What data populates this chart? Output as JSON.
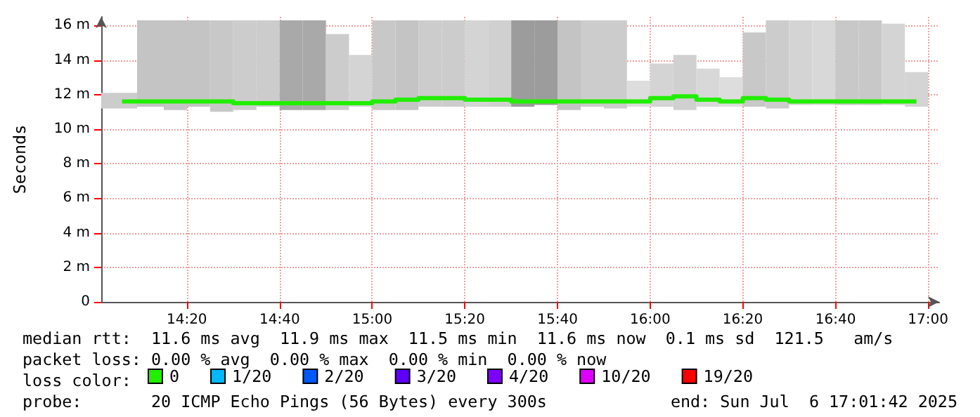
{
  "chart_data": {
    "type": "bar",
    "ylabel": "Seconds",
    "x": [
      14.1,
      14.208,
      14.292,
      14.375,
      14.458,
      14.542,
      14.625,
      14.708,
      14.792,
      14.875,
      14.958,
      15.042,
      15.125,
      15.208,
      15.292,
      15.375,
      15.458,
      15.542,
      15.625,
      15.708,
      15.792,
      15.875,
      15.958,
      16.042,
      16.125,
      16.208,
      16.292,
      16.375,
      16.458,
      16.542,
      16.625,
      16.708,
      16.792,
      16.875,
      16.958
    ],
    "series": [
      {
        "base": [
          11.2,
          11.3,
          11.1,
          11.3,
          11.0,
          11.1,
          11.3,
          11.1,
          11.1,
          11.1,
          11.3,
          11.1,
          11.1,
          11.3,
          11.3,
          11.3,
          11.3,
          11.3,
          11.4,
          11.1,
          11.3,
          11.2,
          11.3,
          11.3,
          11.1,
          11.3,
          11.3,
          11.3,
          11.2,
          11.4,
          11.4,
          11.4,
          11.4,
          11.4,
          11.3
        ],
        "values": [
          0.9,
          5.0,
          5.2,
          5.0,
          5.3,
          5.2,
          5.0,
          5.2,
          5.2,
          4.4,
          3.0,
          5.2,
          5.2,
          5.0,
          5.0,
          5.0,
          5.0,
          5.0,
          4.9,
          5.2,
          5.0,
          5.1,
          1.5,
          2.5,
          3.2,
          2.2,
          1.7,
          4.3,
          5.1,
          4.9,
          4.9,
          4.9,
          4.9,
          4.7,
          2.0
        ],
        "colors": [
          "#cccccc",
          "#c4c4c4",
          "#c4c4c4",
          "#c4c4c4",
          "#c8c8c8",
          "#cccccc",
          "#cccccc",
          "#a9a9a9",
          "#a9a9a9",
          "#cccccc",
          "#d4d4d4",
          "#c8c8c8",
          "#c4c4c4",
          "#cccccc",
          "#cccccc",
          "#d4d4d4",
          "#d0d0d0",
          "#9c9c9c",
          "#9c9c9c",
          "#c4c4c4",
          "#cccccc",
          "#cccccc",
          "#dddddd",
          "#d4d4d4",
          "#d0d0d0",
          "#d8d8d8",
          "#dddddd",
          "#c8c8c8",
          "#cccccc",
          "#d4d4d4",
          "#d8d8d8",
          "#c8c8c8",
          "#c8c8c8",
          "#d4d4d4",
          "#d4d4d4"
        ]
      },
      {
        "type": "step",
        "name": "0",
        "color": "#22ee00",
        "values": [
          11.6,
          11.6,
          11.6,
          11.6,
          11.6,
          11.5,
          11.5,
          11.5,
          11.5,
          11.5,
          11.5,
          11.6,
          11.7,
          11.8,
          11.8,
          11.7,
          11.7,
          11.6,
          11.6,
          11.6,
          11.6,
          11.6,
          11.6,
          11.8,
          11.9,
          11.7,
          11.6,
          11.8,
          11.7,
          11.6,
          11.6,
          11.6,
          11.6,
          11.6,
          11.6
        ]
      },
      {
        "type": "step",
        "name": "1/20",
        "color": "#00b8ff",
        "values": [
          null,
          null,
          null,
          null,
          null,
          null,
          null,
          null,
          null,
          null,
          null,
          null,
          null,
          null,
          null,
          null,
          null,
          null,
          null,
          null,
          null,
          null,
          null,
          null,
          null,
          null,
          null,
          null,
          null,
          null,
          null,
          null,
          null,
          null,
          null
        ]
      },
      {
        "type": "step",
        "name": "2/20",
        "color": "#0059ff",
        "values": [
          null,
          null,
          null,
          null,
          null,
          null,
          null,
          null,
          null,
          null,
          null,
          null,
          null,
          null,
          null,
          null,
          null,
          null,
          null,
          null,
          null,
          null,
          null,
          null,
          null,
          null,
          null,
          null,
          null,
          null,
          null,
          null,
          null,
          null,
          null
        ]
      },
      {
        "type": "step",
        "name": "3/20",
        "color": "#5e00ff",
        "values": [
          null,
          null,
          null,
          null,
          null,
          null,
          null,
          null,
          null,
          null,
          null,
          null,
          null,
          null,
          null,
          null,
          null,
          null,
          null,
          null,
          null,
          null,
          null,
          null,
          null,
          null,
          null,
          null,
          null,
          null,
          null,
          null,
          null,
          null,
          null
        ]
      },
      {
        "type": "step",
        "name": "4/20",
        "color": "#7e00ff",
        "values": [
          null,
          null,
          null,
          null,
          null,
          null,
          null,
          null,
          null,
          null,
          null,
          null,
          null,
          null,
          null,
          null,
          null,
          null,
          null,
          null,
          null,
          null,
          null,
          null,
          null,
          null,
          null,
          null,
          null,
          null,
          null,
          null,
          null,
          null,
          null
        ]
      },
      {
        "type": "step",
        "name": "10/20",
        "color": "#dd00ff",
        "values": [
          null,
          null,
          null,
          null,
          null,
          null,
          null,
          null,
          null,
          null,
          null,
          null,
          null,
          null,
          null,
          null,
          null,
          null,
          null,
          null,
          null,
          null,
          null,
          null,
          null,
          null,
          null,
          null,
          null,
          null,
          null,
          null,
          null,
          null,
          null
        ]
      },
      {
        "type": "step",
        "name": "19/20",
        "color": "#ff0000",
        "values": [
          null,
          null,
          null,
          null,
          null,
          null,
          null,
          null,
          null,
          null,
          null,
          null,
          null,
          null,
          null,
          null,
          null,
          null,
          null,
          null,
          null,
          null,
          null,
          null,
          null,
          null,
          null,
          null,
          null,
          null,
          null,
          null,
          null,
          null,
          null
        ]
      }
    ],
    "xlim": [
      14.025,
      17.04
    ],
    "xticks": [
      {
        "value": 14.333,
        "label": "14:20"
      },
      {
        "value": 14.667,
        "label": "14:40"
      },
      {
        "value": 15,
        "label": "15:00"
      },
      {
        "value": 15.333,
        "label": "15:20"
      },
      {
        "value": 15.667,
        "label": "15:40"
      },
      {
        "value": 16,
        "label": "16:00"
      },
      {
        "value": 16.333,
        "label": "16:20"
      },
      {
        "value": 16.667,
        "label": "16:40"
      },
      {
        "value": 17,
        "label": "17:00"
      }
    ],
    "ylim": [
      0,
      16.5
    ],
    "yticks": [
      0,
      {
        "value": 2,
        "label": "2 m"
      },
      {
        "value": 4,
        "label": "4 m"
      },
      {
        "value": 6,
        "label": "6 m"
      },
      {
        "value": 8,
        "label": "8 m"
      },
      {
        "value": 10,
        "label": "10 m"
      },
      {
        "value": 12,
        "label": "12 m"
      },
      {
        "value": 14,
        "label": "14 m"
      },
      {
        "value": 16,
        "label": "16 m"
      }
    ],
    "grid": true,
    "legend": "bottom",
    "legend_title": "loss color:",
    "line_style": "solid",
    "marker": "none",
    "annotations": [
      "median rtt:  11.6 ms avg  11.9 ms max  11.5 ms min  11.6 ms now  0.1 ms sd  121.5   am/s",
      "packet loss: 0.00 % avg  0.00 % max  0.00 % min  0.00 % now",
      "probe:       20 ICMP Echo Pings (56 Bytes) every 300s",
      "end: Sun Jul  6 17:01:42 2025"
    ]
  }
}
